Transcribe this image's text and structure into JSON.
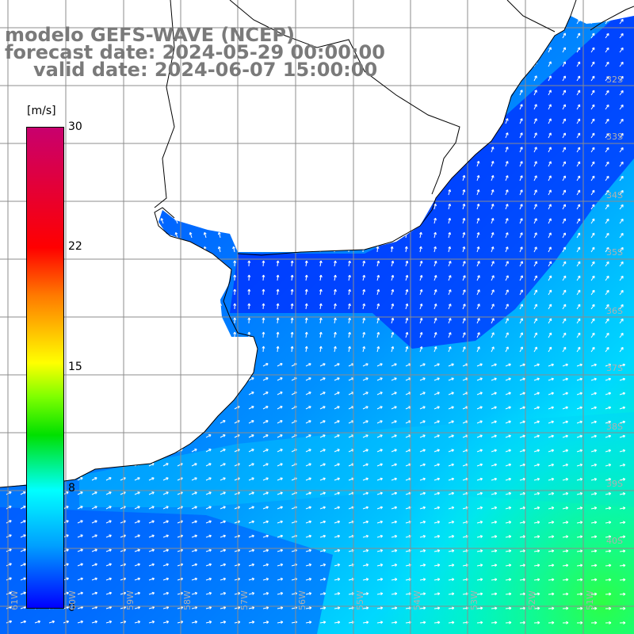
{
  "titles": {
    "model": "modelo GEFS-WAVE (NCEP)",
    "forecast": "forecast date: 2024-05-29 00:00:00",
    "valid": "valid date: 2024-06-07 15:00:00"
  },
  "colorbar": {
    "unit": "[m/s]",
    "ticks": [
      {
        "value": 30,
        "label": "30"
      },
      {
        "value": 22,
        "label": "22"
      },
      {
        "value": 15,
        "label": "15"
      },
      {
        "value": 8,
        "label": "8"
      },
      {
        "value": 0,
        "label": "0"
      }
    ],
    "colors": [
      "#0000ff",
      "#00a0ff",
      "#00ffff",
      "#00e000",
      "#7fff00",
      "#ffff00",
      "#ff7a00",
      "#ff0000",
      "#c8006e"
    ]
  },
  "lat_labels": [
    "32S",
    "33S",
    "34S",
    "35S",
    "36S",
    "37S",
    "38S",
    "39S",
    "40S"
  ],
  "lon_labels": [
    "61W",
    "60W",
    "59W",
    "58W",
    "57W",
    "56W",
    "55W",
    "54W",
    "53W",
    "52W",
    "51W"
  ],
  "colors": {
    "land": "#ffffff",
    "grid": "#8c8c8c",
    "arrows": "#ffffff",
    "coast": "#000000",
    "title": "#7a7a7a"
  }
}
